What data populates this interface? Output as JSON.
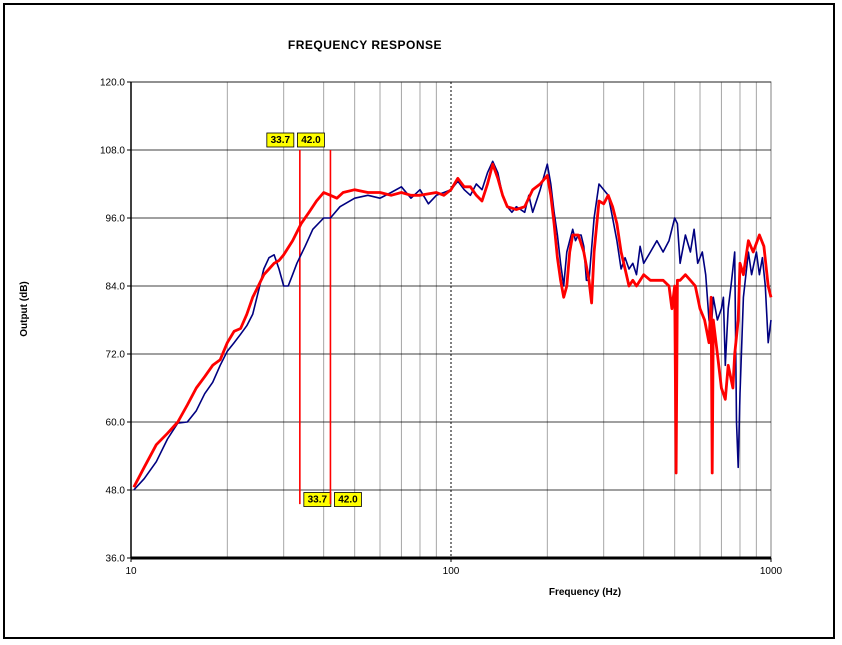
{
  "chart_data": {
    "type": "line",
    "title": "FREQUENCY RESPONSE",
    "xlabel": "Frequency (Hz)",
    "ylabel": "Output (dB)",
    "xscale": "log",
    "xlim": [
      10,
      1000
    ],
    "ylim": [
      36,
      120
    ],
    "x_ticks": [
      10,
      100,
      1000
    ],
    "x_tick_labels": [
      "10",
      "100",
      "1000"
    ],
    "y_ticks": [
      36,
      48,
      60,
      72,
      84,
      96,
      108,
      120
    ],
    "y_tick_labels": [
      "36.0",
      "48.0",
      "60.0",
      "72.0",
      "84.0",
      "96.0",
      "108.0",
      "120.0"
    ],
    "grid": true,
    "legend": "none",
    "series": [
      {
        "color": "#000080",
        "points": [
          [
            10.2,
            48
          ],
          [
            11,
            50
          ],
          [
            12,
            53
          ],
          [
            13,
            57
          ],
          [
            14,
            59.8
          ],
          [
            15,
            60
          ],
          [
            16,
            62
          ],
          [
            17,
            65
          ],
          [
            18,
            67
          ],
          [
            19,
            70
          ],
          [
            20,
            72.5
          ],
          [
            21,
            74
          ],
          [
            22,
            75.5
          ],
          [
            23,
            77
          ],
          [
            24,
            79
          ],
          [
            25,
            83
          ],
          [
            26,
            87
          ],
          [
            27,
            89
          ],
          [
            28,
            89.5
          ],
          [
            29,
            87
          ],
          [
            30,
            84
          ],
          [
            31,
            84
          ],
          [
            32,
            86
          ],
          [
            33,
            88
          ],
          [
            35,
            91
          ],
          [
            37,
            94
          ],
          [
            40,
            96
          ],
          [
            42,
            96
          ],
          [
            45,
            98
          ],
          [
            50,
            99.5
          ],
          [
            55,
            100
          ],
          [
            60,
            99.5
          ],
          [
            65,
            100.5
          ],
          [
            70,
            101.5
          ],
          [
            75,
            99.5
          ],
          [
            80,
            101
          ],
          [
            85,
            98.5
          ],
          [
            90,
            100
          ],
          [
            95,
            100.5
          ],
          [
            100,
            101
          ],
          [
            105,
            102.5
          ],
          [
            110,
            101
          ],
          [
            115,
            100
          ],
          [
            120,
            102
          ],
          [
            125,
            101
          ],
          [
            130,
            104
          ],
          [
            135,
            106
          ],
          [
            140,
            104
          ],
          [
            145,
            100
          ],
          [
            150,
            98
          ],
          [
            155,
            97
          ],
          [
            160,
            98
          ],
          [
            170,
            97
          ],
          [
            175,
            100
          ],
          [
            180,
            97
          ],
          [
            190,
            101
          ],
          [
            200,
            105.5
          ],
          [
            205,
            102
          ],
          [
            210,
            97
          ],
          [
            215,
            93
          ],
          [
            220,
            88
          ],
          [
            225,
            84
          ],
          [
            230,
            90
          ],
          [
            235,
            92
          ],
          [
            240,
            94
          ],
          [
            245,
            92
          ],
          [
            250,
            93
          ],
          [
            255,
            93
          ],
          [
            260,
            91
          ],
          [
            265,
            85
          ],
          [
            270,
            85
          ],
          [
            280,
            96
          ],
          [
            290,
            102
          ],
          [
            300,
            101
          ],
          [
            310,
            100
          ],
          [
            320,
            96
          ],
          [
            330,
            92
          ],
          [
            340,
            87
          ],
          [
            350,
            89
          ],
          [
            360,
            87
          ],
          [
            370,
            88
          ],
          [
            380,
            86
          ],
          [
            390,
            91
          ],
          [
            400,
            88
          ],
          [
            420,
            90
          ],
          [
            440,
            92
          ],
          [
            460,
            90
          ],
          [
            480,
            92
          ],
          [
            500,
            96
          ],
          [
            510,
            95
          ],
          [
            520,
            88
          ],
          [
            540,
            93
          ],
          [
            560,
            90
          ],
          [
            575,
            94
          ],
          [
            590,
            88
          ],
          [
            610,
            90
          ],
          [
            625,
            86
          ],
          [
            640,
            78
          ],
          [
            650,
            76
          ],
          [
            660,
            82
          ],
          [
            680,
            78
          ],
          [
            700,
            80
          ],
          [
            710,
            82
          ],
          [
            720,
            70
          ],
          [
            735,
            80
          ],
          [
            750,
            84
          ],
          [
            770,
            90
          ],
          [
            780,
            60
          ],
          [
            790,
            52
          ],
          [
            800,
            65
          ],
          [
            820,
            82
          ],
          [
            850,
            90
          ],
          [
            870,
            86
          ],
          [
            900,
            90
          ],
          [
            920,
            86
          ],
          [
            940,
            89
          ],
          [
            960,
            84
          ],
          [
            980,
            74
          ],
          [
            1000,
            78
          ]
        ]
      },
      {
        "color": "#ff0000",
        "points": [
          [
            10.2,
            48.5
          ],
          [
            11,
            52
          ],
          [
            12,
            56
          ],
          [
            13,
            58
          ],
          [
            14,
            60
          ],
          [
            15,
            63
          ],
          [
            16,
            66
          ],
          [
            17,
            68
          ],
          [
            18,
            70
          ],
          [
            19,
            71
          ],
          [
            20,
            74
          ],
          [
            21,
            76
          ],
          [
            22,
            76.5
          ],
          [
            23,
            79
          ],
          [
            24,
            82
          ],
          [
            25,
            84
          ],
          [
            26,
            86
          ],
          [
            27,
            87
          ],
          [
            28,
            88
          ],
          [
            29,
            88.5
          ],
          [
            30,
            89.5
          ],
          [
            32,
            92
          ],
          [
            34,
            95
          ],
          [
            36,
            97
          ],
          [
            38,
            99
          ],
          [
            40,
            100.5
          ],
          [
            42,
            100
          ],
          [
            44,
            99.5
          ],
          [
            46,
            100.5
          ],
          [
            50,
            101
          ],
          [
            55,
            100.5
          ],
          [
            60,
            100.5
          ],
          [
            65,
            100
          ],
          [
            70,
            100.5
          ],
          [
            75,
            100
          ],
          [
            80,
            100
          ],
          [
            90,
            100.5
          ],
          [
            95,
            100
          ],
          [
            100,
            101
          ],
          [
            105,
            103
          ],
          [
            110,
            101.5
          ],
          [
            115,
            101.5
          ],
          [
            120,
            100
          ],
          [
            125,
            99
          ],
          [
            130,
            102
          ],
          [
            135,
            105.5
          ],
          [
            140,
            103
          ],
          [
            145,
            100
          ],
          [
            150,
            98
          ],
          [
            160,
            97.5
          ],
          [
            170,
            98
          ],
          [
            180,
            101
          ],
          [
            190,
            102
          ],
          [
            200,
            103.5
          ],
          [
            205,
            100
          ],
          [
            210,
            95
          ],
          [
            215,
            89
          ],
          [
            220,
            85
          ],
          [
            225,
            82
          ],
          [
            230,
            84
          ],
          [
            235,
            90
          ],
          [
            240,
            93
          ],
          [
            250,
            93
          ],
          [
            260,
            90
          ],
          [
            270,
            85
          ],
          [
            275,
            81
          ],
          [
            280,
            90
          ],
          [
            290,
            99
          ],
          [
            300,
            98.5
          ],
          [
            310,
            100
          ],
          [
            320,
            98
          ],
          [
            330,
            95
          ],
          [
            340,
            90
          ],
          [
            350,
            87
          ],
          [
            360,
            84
          ],
          [
            370,
            85
          ],
          [
            380,
            84
          ],
          [
            400,
            86
          ],
          [
            420,
            85
          ],
          [
            440,
            85
          ],
          [
            460,
            85
          ],
          [
            480,
            84
          ],
          [
            490,
            80
          ],
          [
            500,
            84
          ],
          [
            505,
            51
          ],
          [
            510,
            85
          ],
          [
            520,
            85
          ],
          [
            540,
            86
          ],
          [
            560,
            85
          ],
          [
            580,
            84
          ],
          [
            600,
            80
          ],
          [
            620,
            78
          ],
          [
            640,
            74
          ],
          [
            650,
            82
          ],
          [
            655,
            51
          ],
          [
            660,
            78
          ],
          [
            680,
            72
          ],
          [
            700,
            66
          ],
          [
            720,
            64
          ],
          [
            735,
            70
          ],
          [
            760,
            66
          ],
          [
            770,
            72
          ],
          [
            790,
            78
          ],
          [
            800,
            88
          ],
          [
            820,
            86
          ],
          [
            850,
            92
          ],
          [
            880,
            90
          ],
          [
            920,
            93
          ],
          [
            950,
            91
          ],
          [
            980,
            84
          ],
          [
            1000,
            82
          ]
        ]
      }
    ],
    "markers": [
      {
        "x": 33.7,
        "label": "33.7"
      },
      {
        "x": 42.0,
        "label": "42.0"
      }
    ],
    "colors": {
      "grid": "#a6a6a6",
      "center_line": "#000000",
      "marker_line": "#ff0000",
      "marker_label_bg": "#ffff00"
    }
  }
}
